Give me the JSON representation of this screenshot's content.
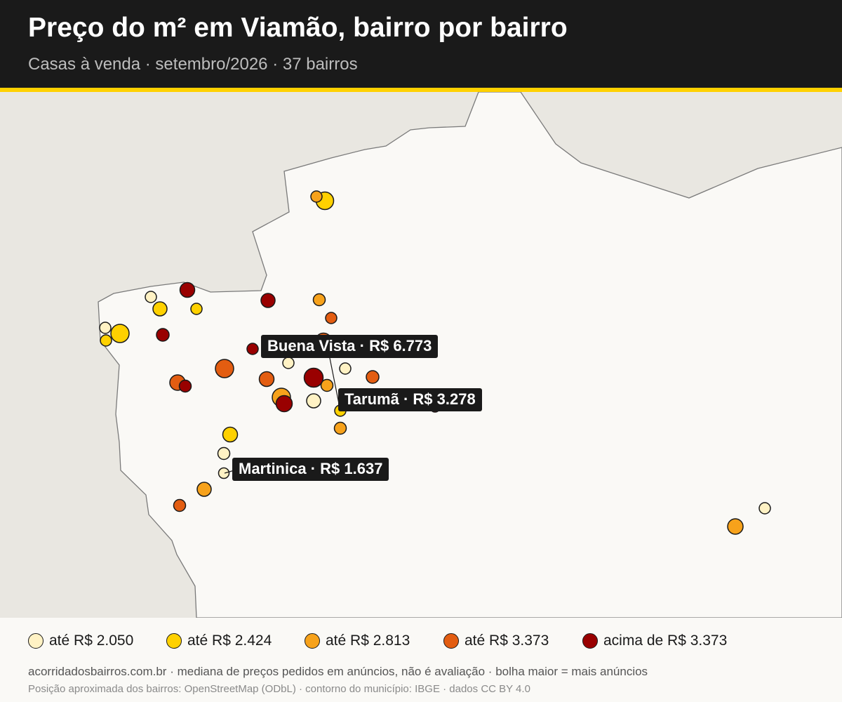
{
  "header": {
    "title": "Preço do m² em Viamão, bairro por bairro",
    "subtitle": "Casas à venda · setembro/2026 · 37 bairros"
  },
  "colors": {
    "header_bg": "#1a1a1a",
    "accent": "#ffd100",
    "land": "#faf9f6",
    "outside": "#e9e7e1",
    "boundary": "#7a7a7a",
    "marker_stroke": "#1a1a1a",
    "class_1": "#fff2c4",
    "class_2": "#ffd100",
    "class_3": "#f7a21b",
    "class_4": "#e35d11",
    "class_5": "#990000"
  },
  "legend": [
    {
      "label": "até R$ 2.050",
      "class": 1
    },
    {
      "label": "até R$ 2.424",
      "class": 2
    },
    {
      "label": "até R$ 2.813",
      "class": 3
    },
    {
      "label": "até R$ 3.373",
      "class": 4
    },
    {
      "label": "acima de R$ 3.373",
      "class": 5
    }
  ],
  "callouts": {
    "buena_vista": "Buena Vista · R$ 6.773",
    "taruma": "Tarumã · R$ 3.278",
    "martinica": "Martinica · R$ 1.637"
  },
  "footer": {
    "line1": "acorridadosbairros.com.br · mediana de preços pedidos em anúncios, não é avaliação · bolha maior = mais anúncios",
    "line2": "Posição aproximada dos bairros: OpenStreetMap (ODbL) · contorno do município: IBGE · dados CC BY 4.0"
  }
}
